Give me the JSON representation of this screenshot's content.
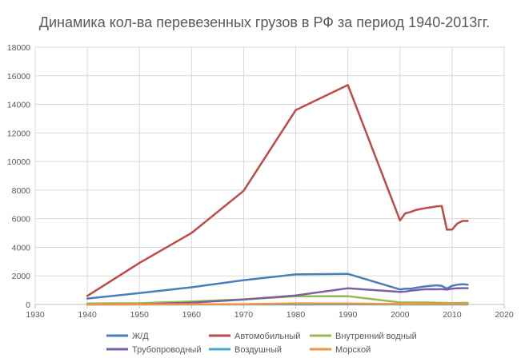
{
  "chart_data": {
    "type": "line",
    "title": "Динамика кол-ва перевезенных грузов в РФ за период 1940-2013гг.",
    "xlabel": "",
    "ylabel": "",
    "xlim": [
      1930,
      2020
    ],
    "ylim": [
      0,
      18000
    ],
    "x_ticks": [
      1930,
      1940,
      1950,
      1960,
      1970,
      1980,
      1990,
      2000,
      2010,
      2020
    ],
    "y_ticks": [
      0,
      2000,
      4000,
      6000,
      8000,
      10000,
      12000,
      14000,
      16000,
      18000
    ],
    "grid": true,
    "legend_position": "bottom",
    "series": [
      {
        "name": "Ж/Д",
        "color": "#4a7ebb",
        "points": [
          [
            1940,
            415
          ],
          [
            1950,
            800
          ],
          [
            1960,
            1200
          ],
          [
            1970,
            1700
          ],
          [
            1980,
            2100
          ],
          [
            1990,
            2140
          ],
          [
            2000,
            1050
          ],
          [
            2001,
            1100
          ],
          [
            2002,
            1100
          ],
          [
            2003,
            1160
          ],
          [
            2004,
            1220
          ],
          [
            2005,
            1270
          ],
          [
            2006,
            1310
          ],
          [
            2007,
            1340
          ],
          [
            2008,
            1300
          ],
          [
            2009,
            1110
          ],
          [
            2010,
            1310
          ],
          [
            2011,
            1380
          ],
          [
            2012,
            1420
          ],
          [
            2013,
            1380
          ]
        ]
      },
      {
        "name": "Автомобильный",
        "color": "#be4b48",
        "points": [
          [
            1940,
            600
          ],
          [
            1950,
            2900
          ],
          [
            1960,
            5000
          ],
          [
            1970,
            7950
          ],
          [
            1980,
            13600
          ],
          [
            1990,
            15350
          ],
          [
            2000,
            5880
          ],
          [
            2001,
            6370
          ],
          [
            2002,
            6470
          ],
          [
            2003,
            6600
          ],
          [
            2004,
            6680
          ],
          [
            2005,
            6750
          ],
          [
            2006,
            6800
          ],
          [
            2007,
            6860
          ],
          [
            2008,
            6890
          ],
          [
            2009,
            5230
          ],
          [
            2010,
            5240
          ],
          [
            2011,
            5660
          ],
          [
            2012,
            5840
          ],
          [
            2013,
            5840
          ]
        ]
      },
      {
        "name": "Внутренний водный",
        "color": "#98b954",
        "points": [
          [
            1940,
            70
          ],
          [
            1950,
            90
          ],
          [
            1960,
            210
          ],
          [
            1970,
            360
          ],
          [
            1980,
            570
          ],
          [
            1990,
            580
          ],
          [
            2000,
            140
          ],
          [
            2005,
            140
          ],
          [
            2010,
            100
          ],
          [
            2013,
            120
          ]
        ]
      },
      {
        "name": "Трубопроводный",
        "color": "#7d60a0",
        "points": [
          [
            1940,
            8
          ],
          [
            1950,
            15
          ],
          [
            1960,
            130
          ],
          [
            1970,
            340
          ],
          [
            1980,
            630
          ],
          [
            1990,
            1130
          ],
          [
            2000,
            880
          ],
          [
            2001,
            900
          ],
          [
            2002,
            960
          ],
          [
            2003,
            1000
          ],
          [
            2004,
            1040
          ],
          [
            2005,
            1060
          ],
          [
            2006,
            1070
          ],
          [
            2007,
            1060
          ],
          [
            2008,
            1080
          ],
          [
            2009,
            1040
          ],
          [
            2010,
            1100
          ],
          [
            2011,
            1130
          ],
          [
            2012,
            1140
          ],
          [
            2013,
            1140
          ]
        ]
      },
      {
        "name": "Воздушный",
        "color": "#46aac5",
        "points": [
          [
            1940,
            0
          ],
          [
            1960,
            0
          ],
          [
            1980,
            2
          ],
          [
            1990,
            3
          ],
          [
            2000,
            1
          ],
          [
            2013,
            1
          ]
        ]
      },
      {
        "name": "Морской",
        "color": "#f69240",
        "points": [
          [
            1940,
            5
          ],
          [
            1950,
            5
          ],
          [
            1960,
            10
          ],
          [
            1970,
            25
          ],
          [
            1980,
            80
          ],
          [
            1990,
            70
          ],
          [
            2000,
            30
          ],
          [
            2010,
            40
          ],
          [
            2013,
            40
          ]
        ]
      }
    ]
  }
}
